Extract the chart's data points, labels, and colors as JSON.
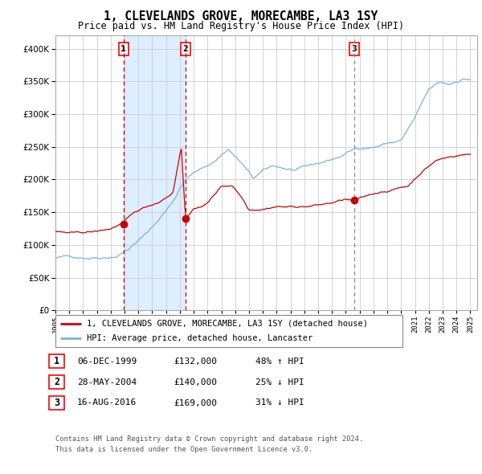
{
  "title": "1, CLEVELANDS GROVE, MORECAMBE, LA3 1SY",
  "subtitle": "Price paid vs. HM Land Registry's House Price Index (HPI)",
  "xlim_start": 1995.0,
  "xlim_end": 2025.5,
  "ylim": [
    0,
    420000
  ],
  "yticks": [
    0,
    50000,
    100000,
    150000,
    200000,
    250000,
    300000,
    350000,
    400000
  ],
  "sale1": {
    "date_num": 1999.92,
    "price": 132000,
    "label": "1"
  },
  "sale2": {
    "date_num": 2004.41,
    "price": 140000,
    "label": "2"
  },
  "sale3": {
    "date_num": 2016.62,
    "price": 169000,
    "label": "3"
  },
  "legend1": "1, CLEVELANDS GROVE, MORECAMBE, LA3 1SY (detached house)",
  "legend2": "HPI: Average price, detached house, Lancaster",
  "table_rows": [
    {
      "num": "1",
      "date": "06-DEC-1999",
      "price": "£132,000",
      "change": "48% ↑ HPI"
    },
    {
      "num": "2",
      "date": "28-MAY-2004",
      "price": "£140,000",
      "change": "25% ↓ HPI"
    },
    {
      "num": "3",
      "date": "16-AUG-2016",
      "price": "£169,000",
      "change": "31% ↓ HPI"
    }
  ],
  "footnote1": "Contains HM Land Registry data © Crown copyright and database right 2024.",
  "footnote2": "This data is licensed under the Open Government Licence v3.0.",
  "hpi_color": "#7ab4d8",
  "price_color": "#cc0000",
  "shade_color": "#ddeeff",
  "vline1_color": "#cc0000",
  "vline2_color": "#cc0000",
  "vline3_color": "#888888",
  "bg_color": "#ffffff",
  "grid_color": "#cccccc"
}
